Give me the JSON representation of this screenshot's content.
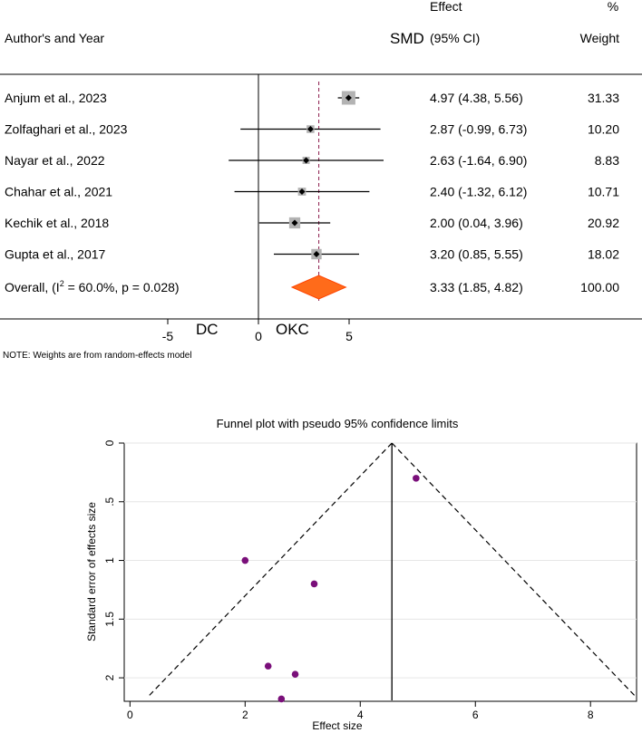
{
  "forest_plot": {
    "header": {
      "author_col": "Author's and Year",
      "effect_top": "Effect",
      "smd_label": "SMD",
      "ci_label": "(95% CI)",
      "pct_top": "%",
      "weight_label": "Weight"
    },
    "overall": {
      "label_pre": "Overall, (I",
      "label_sup": "2",
      "label_post": " = 60.0%, p = 0.028)",
      "effect_text": "3.33 (1.85, 4.82)",
      "weight_text": "100.00"
    },
    "left_group_label": "DC",
    "right_group_label": "OKC",
    "note": "NOTE: Weights are from random-effects model",
    "colors": {
      "diamond": "#ff6b1a",
      "diamond_edge": "#ff4500",
      "box": "#b3b3b3",
      "ref_line": "#8b1a4a"
    }
  },
  "funnel_plot": {
    "title": "Funnel plot with pseudo 95% confidence limits",
    "colors": {
      "point": "#7a0f7a"
    }
  },
  "chart_data": [
    {
      "type": "forest",
      "title": "",
      "xlabel": "",
      "xlim": [
        -7.2,
        10.5
      ],
      "xticks": [
        -5,
        0,
        5
      ],
      "pooled_estimate": 3.33,
      "pooled_ci": [
        1.85,
        4.82
      ],
      "studies": [
        {
          "label": "Anjum et al., 2023",
          "est": 4.97,
          "lo": 4.38,
          "hi": 5.56,
          "weight": 31.33,
          "effect_text": "4.97 (4.38, 5.56)",
          "weight_text": "31.33"
        },
        {
          "label": "Zolfaghari et al., 2023",
          "est": 2.87,
          "lo": -0.99,
          "hi": 6.73,
          "weight": 10.2,
          "effect_text": "2.87 (-0.99, 6.73)",
          "weight_text": "10.20"
        },
        {
          "label": "Nayar et al., 2022",
          "est": 2.63,
          "lo": -1.64,
          "hi": 6.9,
          "weight": 8.83,
          "effect_text": "2.63 (-1.64, 6.90)",
          "weight_text": "8.83"
        },
        {
          "label": "Chahar et al., 2021",
          "est": 2.4,
          "lo": -1.32,
          "hi": 6.12,
          "weight": 10.71,
          "effect_text": "2.40 (-1.32, 6.12)",
          "weight_text": "10.71"
        },
        {
          "label": "Kechik et al., 2018",
          "est": 2.0,
          "lo": 0.04,
          "hi": 3.96,
          "weight": 20.92,
          "effect_text": "2.00 (0.04, 3.96)",
          "weight_text": "20.92"
        },
        {
          "label": "Gupta et al., 2017",
          "est": 3.2,
          "lo": 0.85,
          "hi": 5.55,
          "weight": 18.02,
          "effect_text": "3.20 (0.85, 5.55)",
          "weight_text": "18.02"
        }
      ]
    },
    {
      "type": "scatter",
      "title": "Funnel plot with pseudo 95% confidence limits",
      "xlabel": "Effect size",
      "ylabel": "Standard error of effects size",
      "xlim": [
        -0.1,
        8.8
      ],
      "ylim": [
        0,
        2.2
      ],
      "y_inverted": true,
      "xticks": [
        0,
        2,
        4,
        6,
        8
      ],
      "yticks": [
        0,
        0.5,
        1,
        1.5,
        2
      ],
      "ytick_labels": [
        "0",
        ".5",
        "1",
        "1.5",
        "2"
      ],
      "grid": true,
      "center_line": 4.55,
      "funnel_apex": [
        4.55,
        0
      ],
      "funnel_bottom_se": 2.15,
      "points": [
        {
          "x": 4.97,
          "y": 0.3
        },
        {
          "x": 2.0,
          "y": 1.0
        },
        {
          "x": 3.2,
          "y": 1.2
        },
        {
          "x": 2.4,
          "y": 1.9
        },
        {
          "x": 2.87,
          "y": 1.97
        },
        {
          "x": 2.63,
          "y": 2.18
        }
      ]
    }
  ]
}
